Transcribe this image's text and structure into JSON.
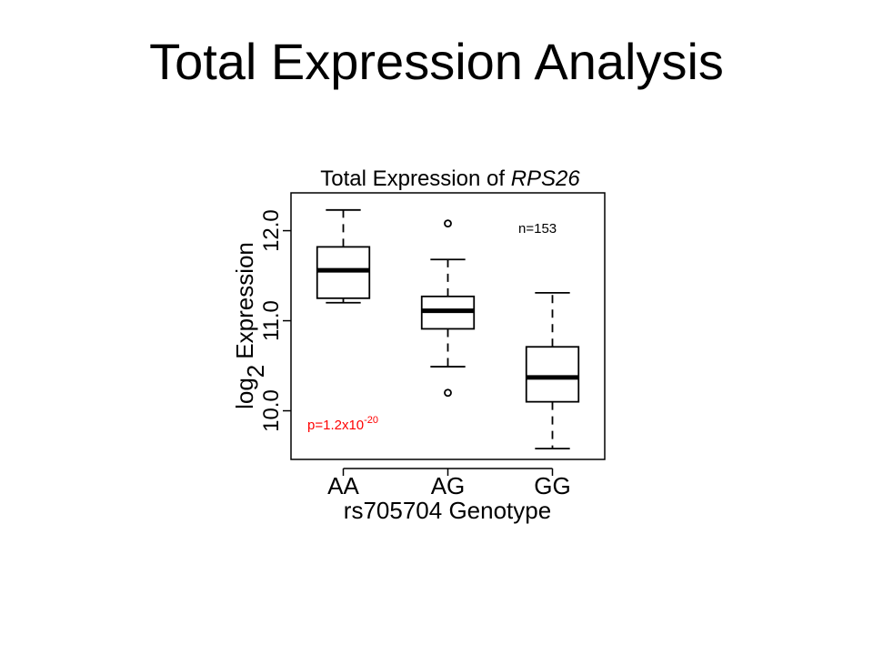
{
  "header": {
    "title": "Total Expression Analysis"
  },
  "chart_data": {
    "type": "boxplot",
    "title": "Total Expression of",
    "gene": "RPS26",
    "ylabel": {
      "text": "log",
      "subscript": "2",
      "rest": "Expression"
    },
    "xlabel": "rs705704 Genotype",
    "categories": [
      "AA",
      "AG",
      "GG"
    ],
    "boxes": [
      {
        "whislo": 11.2,
        "q1": 11.25,
        "med": 11.56,
        "q3": 11.82,
        "whishi": 12.23,
        "fliers": []
      },
      {
        "whislo": 10.49,
        "q1": 10.91,
        "med": 11.11,
        "q3": 11.27,
        "whishi": 11.68,
        "fliers": [
          12.08,
          10.2
        ]
      },
      {
        "whislo": 9.58,
        "q1": 10.1,
        "med": 10.37,
        "q3": 10.71,
        "whishi": 11.31,
        "fliers": []
      }
    ],
    "color": "#000000",
    "ylim": [
      9.46,
      12.42
    ],
    "yticks": [
      {
        "value": 10,
        "label": "10.0"
      },
      {
        "value": 11,
        "label": "11.0"
      },
      {
        "value": 12,
        "label": "12.0"
      }
    ],
    "annotations": {
      "n": "n=153",
      "p": {
        "text": "p=1.2x10",
        "superscript": "-20",
        "color": "#ff0000"
      }
    }
  }
}
